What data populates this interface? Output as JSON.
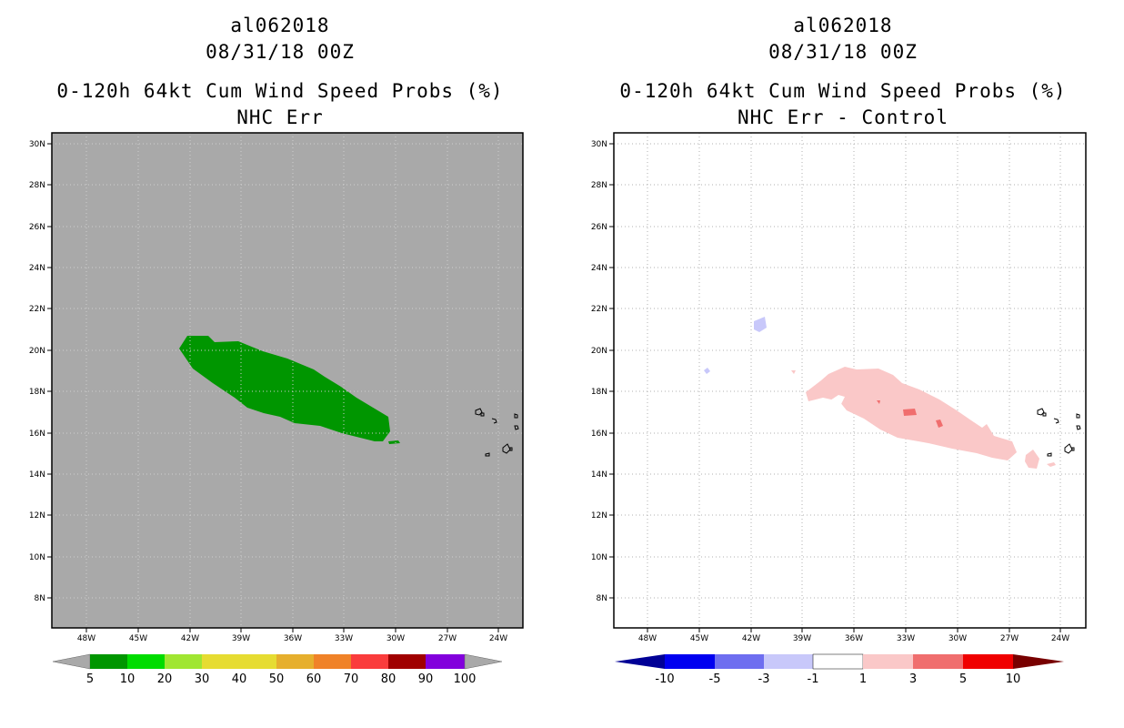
{
  "left_panel": {
    "storm_id": "al062018",
    "datetime": "08/31/18 00Z",
    "product": "0-120h 64kt Cum Wind Speed Probs (%)",
    "subtitle": "NHC Err",
    "lon_labels": [
      "48W",
      "45W",
      "42W",
      "39W",
      "36W",
      "33W",
      "30W",
      "27W",
      "24W"
    ],
    "lat_labels": [
      "30N",
      "28N",
      "26N",
      "24N",
      "22N",
      "20N",
      "18N",
      "16N",
      "14N",
      "12N",
      "10N",
      "8N"
    ],
    "colorbar": {
      "labels": [
        "5",
        "10",
        "20",
        "30",
        "40",
        "50",
        "60",
        "70",
        "80",
        "90",
        "100"
      ],
      "colors": [
        "#009600",
        "#00dc00",
        "#a0e632",
        "#e6dc32",
        "#e6dc32",
        "#e6af2d",
        "#f08228",
        "#fa3c3c",
        "#a00000",
        "#8200dc"
      ],
      "end_color": "#a9a9a9"
    },
    "background_color": "#a9a9a9"
  },
  "right_panel": {
    "storm_id": "al062018",
    "datetime": "08/31/18 00Z",
    "product": "0-120h 64kt Cum Wind Speed Probs (%)",
    "subtitle": "NHC Err - Control",
    "lon_labels": [
      "48W",
      "45W",
      "42W",
      "39W",
      "36W",
      "33W",
      "30W",
      "27W",
      "24W"
    ],
    "lat_labels": [
      "30N",
      "28N",
      "26N",
      "24N",
      "22N",
      "20N",
      "18N",
      "16N",
      "14N",
      "12N",
      "10N",
      "8N"
    ],
    "colorbar": {
      "labels": [
        "-10",
        "-5",
        "-3",
        "-1",
        "1",
        "3",
        "5",
        "10"
      ],
      "colors": [
        "#0000f0",
        "#6e6ef0",
        "#c8c8fa",
        "#ffffff",
        "#fac8c8",
        "#f06e6e",
        "#f00000"
      ],
      "low_end_color": "#000096",
      "high_end_color": "#780000"
    }
  }
}
